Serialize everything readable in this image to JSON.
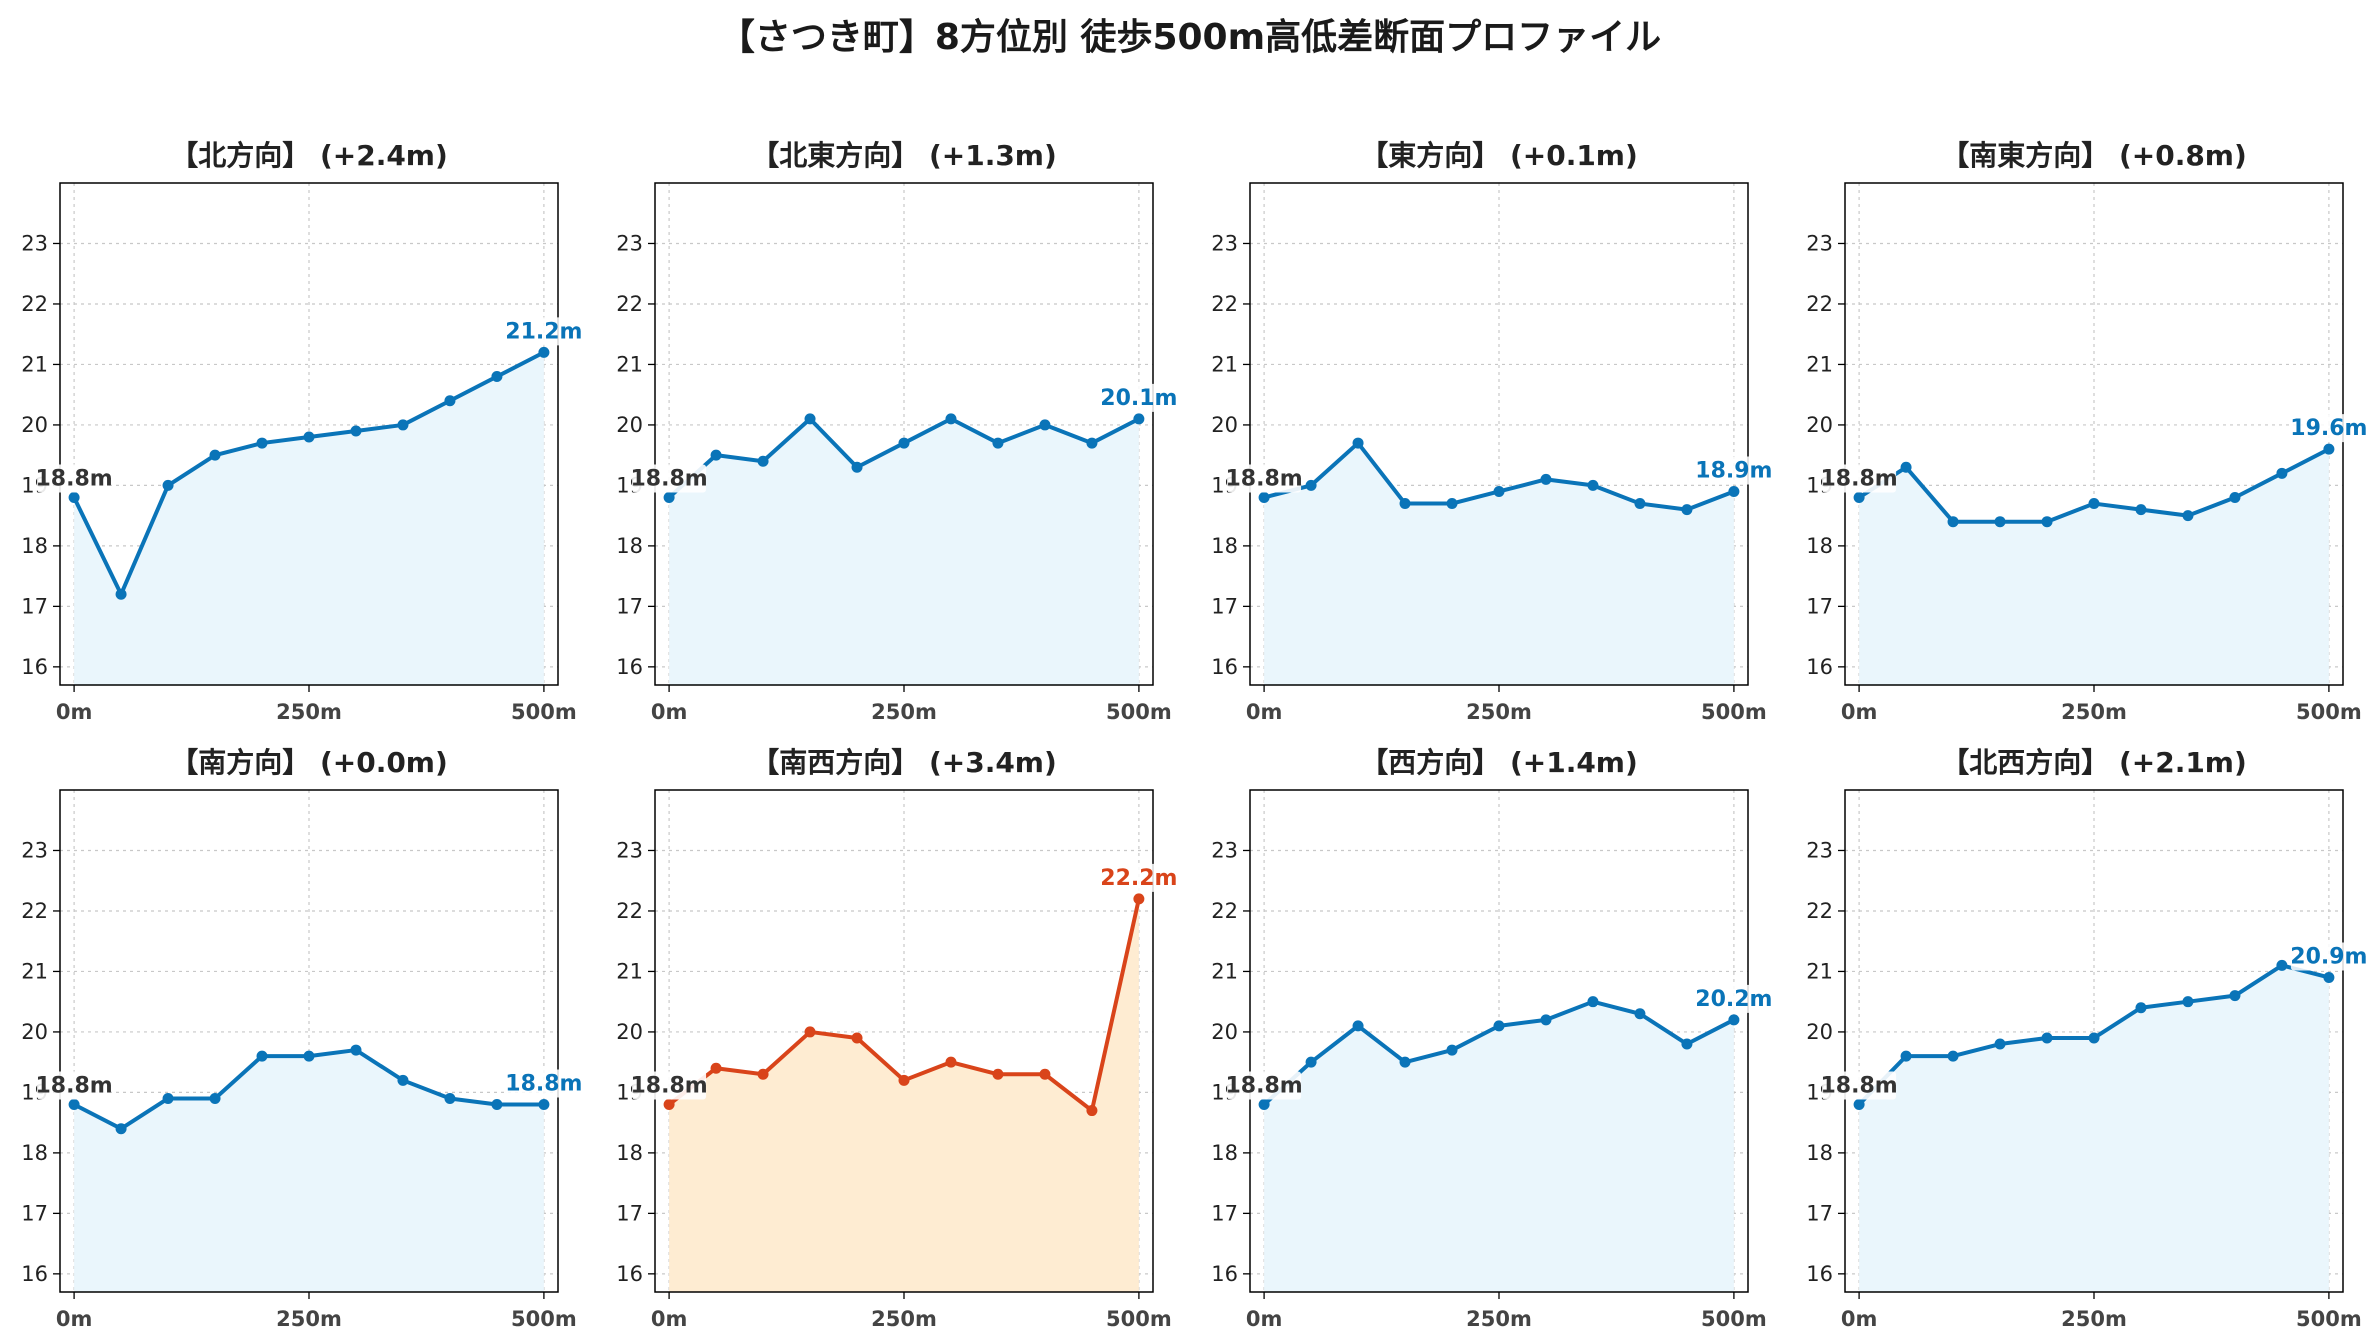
{
  "title": "【さつき町】8方位別 徒歩500m高低差断面プロファイル",
  "colors": {
    "normal_line": "#0a74b8",
    "normal_fill": "#eaf6fc",
    "highlight_line": "#d9441a",
    "highlight_fill": "#feecd2",
    "start_label": "#333333",
    "grid": "#c8c8c8"
  },
  "chart_data": [
    {
      "type": "line",
      "title": "【北方向】 (+2.4m)",
      "x": [
        0,
        50,
        100,
        150,
        200,
        250,
        300,
        350,
        400,
        450,
        500
      ],
      "y": [
        18.8,
        17.2,
        19.0,
        19.5,
        19.7,
        19.8,
        19.9,
        20.0,
        20.4,
        20.8,
        21.2
      ],
      "xticks": [
        "0m",
        "250m",
        "500m"
      ],
      "yticks": [
        "16",
        "17",
        "18",
        "19",
        "20",
        "21",
        "22",
        "23"
      ],
      "ylim": [
        15.7,
        24.0
      ],
      "xlim": [
        -15,
        515
      ],
      "grid": true,
      "start_label": "18.8m",
      "end_label": "21.2m",
      "highlight": false
    },
    {
      "type": "line",
      "title": "【北東方向】 (+1.3m)",
      "x": [
        0,
        50,
        100,
        150,
        200,
        250,
        300,
        350,
        400,
        450,
        500
      ],
      "y": [
        18.8,
        19.5,
        19.4,
        20.1,
        19.3,
        19.7,
        20.1,
        19.7,
        20.0,
        19.7,
        20.1
      ],
      "xticks": [
        "0m",
        "250m",
        "500m"
      ],
      "yticks": [
        "16",
        "17",
        "18",
        "19",
        "20",
        "21",
        "22",
        "23"
      ],
      "ylim": [
        15.7,
        24.0
      ],
      "xlim": [
        -15,
        515
      ],
      "grid": true,
      "start_label": "18.8m",
      "end_label": "20.1m",
      "highlight": false
    },
    {
      "type": "line",
      "title": "【東方向】 (+0.1m)",
      "x": [
        0,
        50,
        100,
        150,
        200,
        250,
        300,
        350,
        400,
        450,
        500
      ],
      "y": [
        18.8,
        19.0,
        19.7,
        18.7,
        18.7,
        18.9,
        19.1,
        19.0,
        18.7,
        18.6,
        18.9
      ],
      "xticks": [
        "0m",
        "250m",
        "500m"
      ],
      "yticks": [
        "16",
        "17",
        "18",
        "19",
        "20",
        "21",
        "22",
        "23"
      ],
      "ylim": [
        15.7,
        24.0
      ],
      "xlim": [
        -15,
        515
      ],
      "grid": true,
      "start_label": "18.8m",
      "end_label": "18.9m",
      "highlight": false
    },
    {
      "type": "line",
      "title": "【南東方向】 (+0.8m)",
      "x": [
        0,
        50,
        100,
        150,
        200,
        250,
        300,
        350,
        400,
        450,
        500
      ],
      "y": [
        18.8,
        19.3,
        18.4,
        18.4,
        18.4,
        18.7,
        18.6,
        18.5,
        18.8,
        19.2,
        19.6
      ],
      "xticks": [
        "0m",
        "250m",
        "500m"
      ],
      "yticks": [
        "16",
        "17",
        "18",
        "19",
        "20",
        "21",
        "22",
        "23"
      ],
      "ylim": [
        15.7,
        24.0
      ],
      "xlim": [
        -15,
        515
      ],
      "grid": true,
      "start_label": "18.8m",
      "end_label": "19.6m",
      "highlight": false
    },
    {
      "type": "line",
      "title": "【南方向】 (+0.0m)",
      "x": [
        0,
        50,
        100,
        150,
        200,
        250,
        300,
        350,
        400,
        450,
        500
      ],
      "y": [
        18.8,
        18.4,
        18.9,
        18.9,
        19.6,
        19.6,
        19.7,
        19.2,
        18.9,
        18.8,
        18.8
      ],
      "xticks": [
        "0m",
        "250m",
        "500m"
      ],
      "yticks": [
        "16",
        "17",
        "18",
        "19",
        "20",
        "21",
        "22",
        "23"
      ],
      "ylim": [
        15.7,
        24.0
      ],
      "xlim": [
        -15,
        515
      ],
      "grid": true,
      "start_label": "18.8m",
      "end_label": "18.8m",
      "highlight": false
    },
    {
      "type": "line",
      "title": "【南西方向】 (+3.4m)",
      "x": [
        0,
        50,
        100,
        150,
        200,
        250,
        300,
        350,
        400,
        450,
        500
      ],
      "y": [
        18.8,
        19.4,
        19.3,
        20.0,
        19.9,
        19.2,
        19.5,
        19.3,
        19.3,
        18.7,
        22.2
      ],
      "xticks": [
        "0m",
        "250m",
        "500m"
      ],
      "yticks": [
        "16",
        "17",
        "18",
        "19",
        "20",
        "21",
        "22",
        "23"
      ],
      "ylim": [
        15.7,
        24.0
      ],
      "xlim": [
        -15,
        515
      ],
      "grid": true,
      "start_label": "18.8m",
      "end_label": "22.2m",
      "highlight": true
    },
    {
      "type": "line",
      "title": "【西方向】 (+1.4m)",
      "x": [
        0,
        50,
        100,
        150,
        200,
        250,
        300,
        350,
        400,
        450,
        500
      ],
      "y": [
        18.8,
        19.5,
        20.1,
        19.5,
        19.7,
        20.1,
        20.2,
        20.5,
        20.3,
        19.8,
        20.2
      ],
      "xticks": [
        "0m",
        "250m",
        "500m"
      ],
      "yticks": [
        "16",
        "17",
        "18",
        "19",
        "20",
        "21",
        "22",
        "23"
      ],
      "ylim": [
        15.7,
        24.0
      ],
      "xlim": [
        -15,
        515
      ],
      "grid": true,
      "start_label": "18.8m",
      "end_label": "20.2m",
      "highlight": false
    },
    {
      "type": "line",
      "title": "【北西方向】 (+2.1m)",
      "x": [
        0,
        50,
        100,
        150,
        200,
        250,
        300,
        350,
        400,
        450,
        500
      ],
      "y": [
        18.8,
        19.6,
        19.6,
        19.8,
        19.9,
        19.9,
        20.4,
        20.5,
        20.6,
        21.1,
        20.9
      ],
      "xticks": [
        "0m",
        "250m",
        "500m"
      ],
      "yticks": [
        "16",
        "17",
        "18",
        "19",
        "20",
        "21",
        "22",
        "23"
      ],
      "ylim": [
        15.7,
        24.0
      ],
      "xlim": [
        -15,
        515
      ],
      "grid": true,
      "start_label": "18.8m",
      "end_label": "20.9m",
      "highlight": false
    }
  ]
}
